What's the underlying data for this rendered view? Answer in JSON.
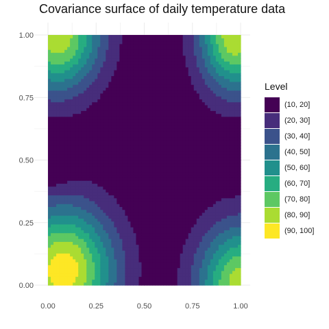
{
  "chart_data": {
    "type": "filled-contour",
    "title": "Covariance surface of daily temperature data",
    "xlabel": "",
    "ylabel": "",
    "xlim": [
      0,
      1
    ],
    "ylim": [
      0,
      1
    ],
    "x_ticks": [
      "0.00",
      "0.25",
      "0.50",
      "0.75",
      "1.00"
    ],
    "y_ticks": [
      "0.00",
      "0.25",
      "0.50",
      "0.75",
      "1.00"
    ],
    "grid": true,
    "legend": {
      "title": "Level",
      "position": "right",
      "entries": [
        {
          "label": "(10, 20]",
          "color": "#440154"
        },
        {
          "label": "(20, 30]",
          "color": "#472D7B"
        },
        {
          "label": "(30, 40]",
          "color": "#3B528B"
        },
        {
          "label": "(40, 50]",
          "color": "#2C728E"
        },
        {
          "label": "(50, 60]",
          "color": "#21908C"
        },
        {
          "label": "(60, 70]",
          "color": "#27AD81"
        },
        {
          "label": "(70, 80]",
          "color": "#5DC863"
        },
        {
          "label": "(80, 90]",
          "color": "#AADC32"
        },
        {
          "label": "(90, 100]",
          "color": "#FDE725"
        }
      ]
    },
    "levels": [
      10,
      20,
      30,
      40,
      50,
      60,
      70,
      80,
      90,
      100
    ],
    "surface": {
      "peaks": [
        {
          "x": 0.08,
          "y": 0.06,
          "value": 97,
          "sx": 0.26,
          "sy": 0.25
        },
        {
          "x": 1.0,
          "y": 0.0,
          "value": 86,
          "sx": 0.22,
          "sy": 0.24
        },
        {
          "x": 0.05,
          "y": 1.0,
          "value": 88,
          "sx": 0.22,
          "sy": 0.22
        },
        {
          "x": 0.97,
          "y": 1.0,
          "value": 89,
          "sx": 0.18,
          "sy": 0.22
        }
      ],
      "background": 12
    }
  }
}
